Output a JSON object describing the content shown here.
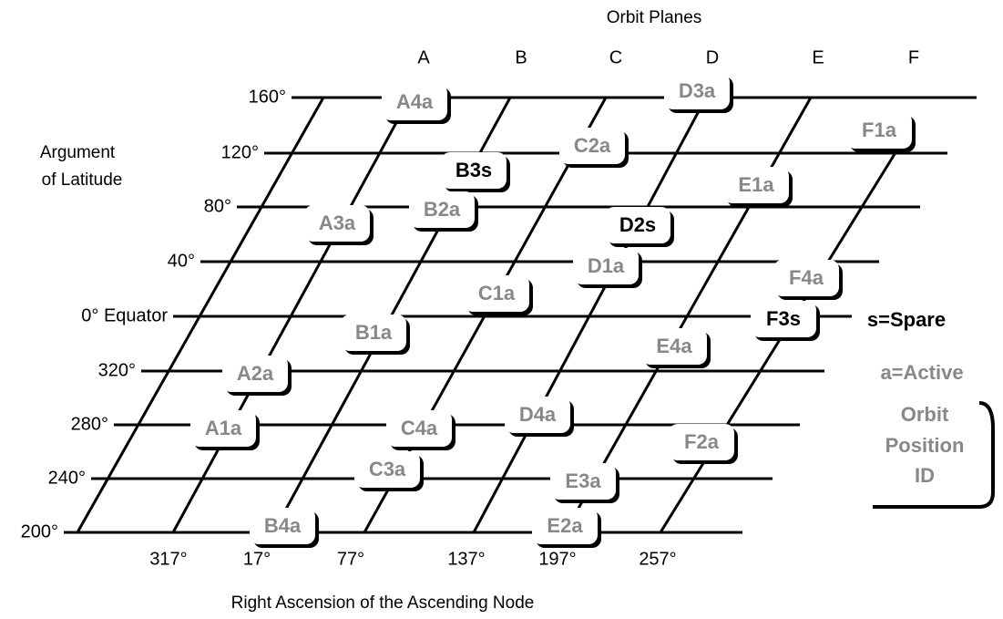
{
  "title": "Orbit Planes",
  "y_axis_label": [
    "Argument",
    "of Latitude"
  ],
  "x_axis_label": "Right Ascension of the Ascending Node",
  "planes": [
    "A",
    "B",
    "C",
    "D",
    "E",
    "F"
  ],
  "latitudes": [
    "160°",
    "120°",
    "80°",
    "40°",
    "0° Equator",
    "320°",
    "280°",
    "240°",
    "200°"
  ],
  "raan": [
    "317°",
    "17°",
    "77°",
    "137°",
    "197°",
    "257°"
  ],
  "satellites": [
    "A4a",
    "D3a",
    "C2a",
    "F1a",
    "B3s",
    "E1a",
    "B2a",
    "D2s",
    "A3a",
    "D1a",
    "F4a",
    "C1a",
    "F3s",
    "B1a",
    "E4a",
    "A2a",
    "D4a",
    "C4a",
    "A1a",
    "F2a",
    "C3a",
    "E3a",
    "B4a",
    "E2a"
  ],
  "legend": {
    "spare": "s=Spare",
    "active": "a=Active",
    "id": [
      "Orbit",
      "Position",
      "ID"
    ]
  }
}
